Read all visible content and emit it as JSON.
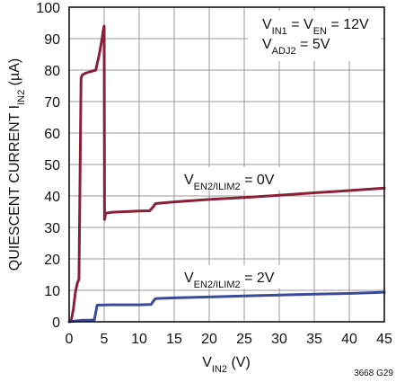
{
  "chart_data": {
    "type": "line",
    "title": "",
    "xlabel": {
      "main": "V",
      "sub": "IN2",
      "tail": " (V)"
    },
    "ylabel": {
      "main": "QUIESCENT CURRENT I",
      "sub": "IN2",
      "tail": " (µA)"
    },
    "xlim": [
      0,
      45
    ],
    "ylim": [
      0,
      100
    ],
    "xticks": [
      "0",
      "5",
      "10",
      "15",
      "20",
      "25",
      "30",
      "35",
      "40",
      "45"
    ],
    "yticks": [
      "0",
      "10",
      "20",
      "30",
      "40",
      "50",
      "60",
      "70",
      "80",
      "90",
      "100"
    ],
    "grid": true,
    "series": [
      {
        "name": "V_EN2/ILIM2 = 0V",
        "color": "#8a1f3a",
        "x": [
          0,
          0.3,
          0.6,
          0.9,
          1.2,
          1.4,
          1.55,
          1.7,
          1.9,
          2.3,
          3.0,
          3.8,
          4.0,
          4.3,
          4.7,
          4.9,
          5.0,
          5.05,
          5.2,
          6.0,
          8.0,
          10.0,
          11.5,
          12.0,
          12.3,
          12.5,
          15,
          20,
          25,
          30,
          35,
          40,
          45
        ],
        "y": [
          0,
          0.5,
          4,
          9.5,
          12.5,
          13.5,
          45,
          77.5,
          78.5,
          79,
          79.5,
          80,
          82,
          85,
          90,
          93,
          94,
          32.5,
          34.5,
          34.8,
          35,
          35.2,
          35.3,
          36.5,
          37.5,
          37.6,
          38.1,
          38.9,
          39.5,
          40.2,
          41,
          41.7,
          42.5
        ]
      },
      {
        "name": "V_EN2/ILIM2 = 2V",
        "color": "#3a4a9a",
        "x": [
          0,
          1,
          2,
          3,
          3.6,
          3.8,
          4.0,
          6,
          10,
          11.7,
          12.0,
          12.3,
          12.5,
          15,
          20,
          25,
          30,
          35,
          40,
          45
        ],
        "y": [
          0,
          0.3,
          0.5,
          0.5,
          0.6,
          3,
          5.3,
          5.4,
          5.4,
          5.5,
          6.5,
          7.3,
          7.4,
          7.6,
          7.9,
          8.2,
          8.5,
          8.8,
          9.0,
          9.4
        ]
      }
    ],
    "annotations": {
      "conditions_line1": {
        "a_main": "V",
        "a_sub": "IN1",
        "b": " = V",
        "b_sub": "EN",
        "c": " = 12V"
      },
      "conditions_line2": {
        "a_main": "V",
        "a_sub": "ADJ2",
        "b": " = 5V"
      },
      "series0_label": {
        "main": "V",
        "sub": "EN2/ILIM2",
        "tail": " = 0V"
      },
      "series1_label": {
        "main": "V",
        "sub": "EN2/ILIM2",
        "tail": " = 2V"
      },
      "figure_code": "3668 G29"
    }
  }
}
